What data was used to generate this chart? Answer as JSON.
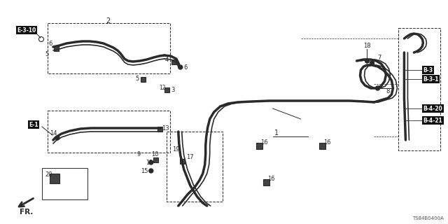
{
  "bg_color": "#ffffff",
  "line_color": "#2a2a2a",
  "diagram_code": "TS84B0400A",
  "bold_labels": [
    "E-3-10",
    "E-1",
    "B-3",
    "B-3-1",
    "B-4-20",
    "B-4-21"
  ]
}
